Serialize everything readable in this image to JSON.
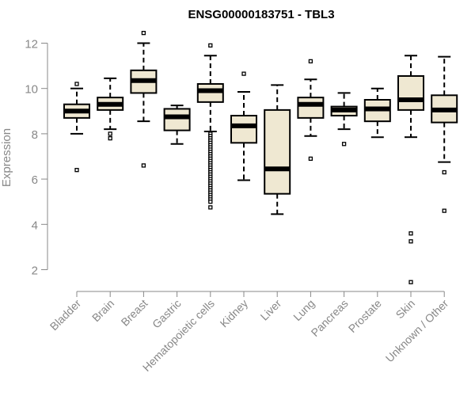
{
  "chart_data": {
    "type": "boxplot",
    "title": "ENSG00000183751 - TBL3",
    "ylabel": "Expression",
    "xlabel": "",
    "ylim": [
      1.0,
      12.5
    ],
    "yticks": [
      2,
      4,
      6,
      8,
      10,
      12
    ],
    "grid": false,
    "categories": [
      "Bladder",
      "Brain",
      "Breast",
      "Gastric",
      "Hematopoietic cells",
      "Kidney",
      "Liver",
      "Lung",
      "Pancreas",
      "Prostate",
      "Skin",
      "Unknown / Other"
    ],
    "boxes": [
      {
        "category": "Bladder",
        "whisker_low": 8.0,
        "q1": 8.7,
        "median": 9.0,
        "q3": 9.3,
        "whisker_high": 10.0,
        "outliers": [
          10.2,
          6.4
        ]
      },
      {
        "category": "Brain",
        "whisker_low": 8.2,
        "q1": 9.05,
        "median": 9.3,
        "q3": 9.6,
        "whisker_high": 10.45,
        "outliers": [
          8.0,
          7.8
        ]
      },
      {
        "category": "Breast",
        "whisker_low": 8.55,
        "q1": 9.8,
        "median": 10.35,
        "q3": 10.8,
        "whisker_high": 12.0,
        "outliers": [
          12.45,
          6.6
        ]
      },
      {
        "category": "Gastric",
        "whisker_low": 7.55,
        "q1": 8.15,
        "median": 8.75,
        "q3": 9.1,
        "whisker_high": 9.25,
        "outliers": []
      },
      {
        "category": "Hematopoietic cells",
        "whisker_low": 8.1,
        "q1": 9.4,
        "median": 9.9,
        "q3": 10.2,
        "whisker_high": 11.45,
        "outliers": [
          11.9,
          8.0,
          7.9,
          7.8,
          7.7,
          7.6,
          7.5,
          7.4,
          7.3,
          7.2,
          7.1,
          7.0,
          6.9,
          6.8,
          6.7,
          6.6,
          6.5,
          6.4,
          6.3,
          6.2,
          6.1,
          6.0,
          5.9,
          5.8,
          5.7,
          5.6,
          5.5,
          5.4,
          5.3,
          5.2,
          5.1,
          5.0,
          4.75
        ]
      },
      {
        "category": "Kidney",
        "whisker_low": 5.95,
        "q1": 7.6,
        "median": 8.35,
        "q3": 8.8,
        "whisker_high": 9.85,
        "outliers": [
          10.65
        ]
      },
      {
        "category": "Liver",
        "whisker_low": 4.45,
        "q1": 5.35,
        "median": 6.45,
        "q3": 9.05,
        "whisker_high": 10.15,
        "outliers": []
      },
      {
        "category": "Lung",
        "whisker_low": 7.9,
        "q1": 8.7,
        "median": 9.3,
        "q3": 9.6,
        "whisker_high": 10.4,
        "outliers": [
          11.2,
          6.9
        ]
      },
      {
        "category": "Pancreas",
        "whisker_low": 8.2,
        "q1": 8.8,
        "median": 9.05,
        "q3": 9.2,
        "whisker_high": 9.8,
        "outliers": [
          7.55
        ]
      },
      {
        "category": "Prostate",
        "whisker_low": 7.85,
        "q1": 8.55,
        "median": 9.1,
        "q3": 9.5,
        "whisker_high": 10.0,
        "outliers": []
      },
      {
        "category": "Skin",
        "whisker_low": 7.85,
        "q1": 9.05,
        "median": 9.5,
        "q3": 10.55,
        "whisker_high": 11.45,
        "outliers": [
          3.6,
          3.25,
          1.45
        ]
      },
      {
        "category": "Unknown / Other",
        "whisker_low": 6.75,
        "q1": 8.5,
        "median": 9.05,
        "q3": 9.7,
        "whisker_high": 11.4,
        "outliers": [
          6.3,
          4.6
        ]
      }
    ],
    "colors": {
      "box_fill": "#efe8d2",
      "box_stroke": "#000000",
      "median": "#000000",
      "axis": "#888888",
      "tick_label": "#888888",
      "title": "#000000"
    }
  }
}
